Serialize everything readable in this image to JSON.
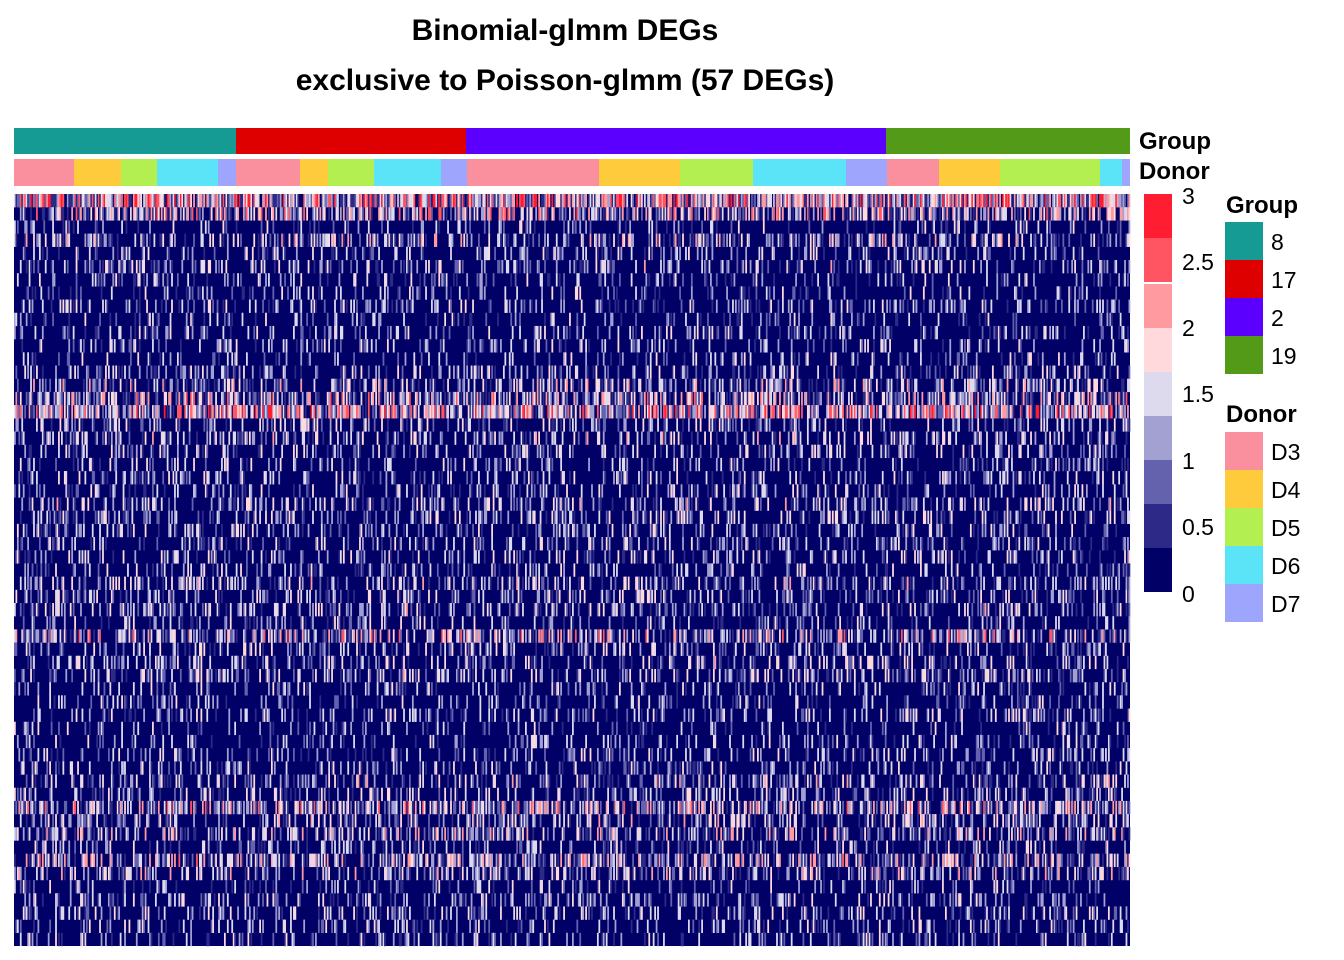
{
  "chart_data": {
    "type": "heatmap",
    "title": "Binomial-glmm DEGs",
    "subtitle": "exclusive to Poisson-glmm (57 DEGs)",
    "n_genes": 57,
    "column_annotations": [
      {
        "name": "Group",
        "segments": [
          {
            "label": "8",
            "color": "#169A94",
            "fraction": 0.199
          },
          {
            "label": "17",
            "color": "#DE0000",
            "fraction": 0.206
          },
          {
            "label": "2",
            "color": "#5B00FF",
            "fraction": 0.376
          },
          {
            "label": "19",
            "color": "#529A17",
            "fraction": 0.219
          }
        ]
      },
      {
        "name": "Donor",
        "segments": [
          {
            "label": "D3",
            "fraction": 0.054
          },
          {
            "label": "D4",
            "fraction": 0.042
          },
          {
            "label": "D5",
            "fraction": 0.032
          },
          {
            "label": "D6",
            "fraction": 0.055
          },
          {
            "label": "D7",
            "fraction": 0.016
          },
          {
            "label": "D3",
            "fraction": 0.057
          },
          {
            "label": "D4",
            "fraction": 0.025
          },
          {
            "label": "D5",
            "fraction": 0.041
          },
          {
            "label": "D6",
            "fraction": 0.06
          },
          {
            "label": "D7",
            "fraction": 0.023
          },
          {
            "label": "D3",
            "fraction": 0.118
          },
          {
            "label": "D4",
            "fraction": 0.073
          },
          {
            "label": "D5",
            "fraction": 0.065
          },
          {
            "label": "D6",
            "fraction": 0.083
          },
          {
            "label": "D7",
            "fraction": 0.037
          },
          {
            "label": "D3",
            "fraction": 0.047
          },
          {
            "label": "D4",
            "fraction": 0.055
          },
          {
            "label": "D5",
            "fraction": 0.09
          },
          {
            "label": "D6",
            "fraction": 0.02
          },
          {
            "label": "D7",
            "fraction": 0.007
          }
        ]
      }
    ],
    "color_scale": {
      "breaks": [
        0,
        0.5,
        1,
        1.5,
        2,
        2.5,
        3
      ],
      "tick_labels": [
        "3",
        "2.5",
        "2",
        "1.5",
        "1",
        "0.5",
        "0"
      ],
      "colors": [
        "#FF1D31",
        "#FF5462",
        "#FF9AA0",
        "#FFD9DB",
        "#DDDAEE",
        "#A3A1D2",
        "#6462AD",
        "#2C2A86",
        "#000066"
      ],
      "low": "#000066",
      "mid": "#FFFFFF",
      "high": "#FF1D31"
    },
    "legends": {
      "group": {
        "title": "Group",
        "items": [
          {
            "label": "8",
            "color": "#169A94"
          },
          {
            "label": "17",
            "color": "#DE0000"
          },
          {
            "label": "2",
            "color": "#5B00FF"
          },
          {
            "label": "19",
            "color": "#529A17"
          }
        ]
      },
      "donor": {
        "title": "Donor",
        "items": [
          {
            "label": "D3",
            "color": "#FA909E"
          },
          {
            "label": "D4",
            "color": "#FDCB3C"
          },
          {
            "label": "D5",
            "color": "#B4EF51"
          },
          {
            "label": "D6",
            "color": "#5BE3F7"
          },
          {
            "label": "D7",
            "color": "#9DA5FD"
          }
        ]
      }
    },
    "row_pattern_mean": [
      2.7,
      1.6,
      0.5,
      1.0,
      0.6,
      0.8,
      0.5,
      0.4,
      0.6,
      0.4,
      0.5,
      0.5,
      0.4,
      0.7,
      1.0,
      1.5,
      2.2,
      0.7,
      0.9,
      0.7,
      0.5,
      0.6,
      0.6,
      0.9,
      0.8,
      0.6,
      0.6,
      0.7,
      0.5,
      0.9,
      0.7,
      0.8,
      0.6,
      1.6,
      0.7,
      0.8,
      0.8,
      0.5,
      0.5,
      0.6,
      0.4,
      0.5,
      0.6,
      0.6,
      0.9,
      0.7,
      1.6,
      0.9,
      1.2,
      0.6,
      1.4,
      1.0,
      0.5,
      0.6,
      0.7,
      0.6,
      0.5
    ]
  }
}
